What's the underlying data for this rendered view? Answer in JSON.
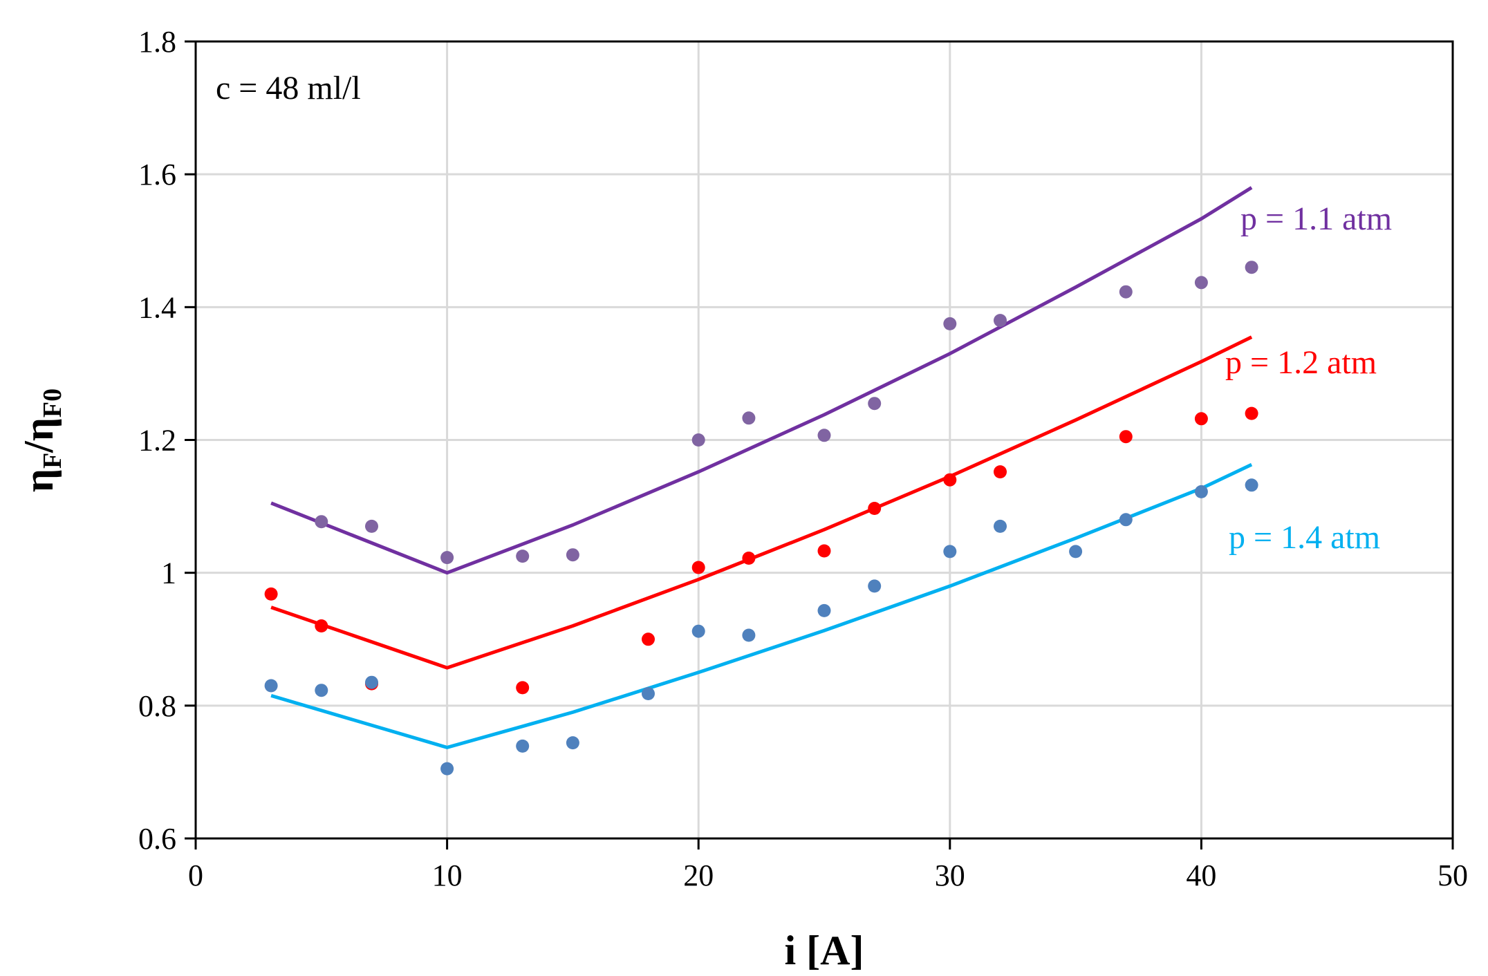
{
  "chart_data": {
    "type": "scatter",
    "title": "",
    "annotation": "c = 48 ml/l",
    "xlabel": "i [A]",
    "ylabel": {
      "base": "η",
      "sub1": "F",
      "sep": "/",
      "sub2": "F0"
    },
    "xlim": [
      0,
      50
    ],
    "ylim": [
      0.6,
      1.8
    ],
    "x_ticks": [
      "0",
      "10",
      "20",
      "30",
      "40",
      "50"
    ],
    "y_ticks": [
      "0.6",
      "0.8",
      "1",
      "1.2",
      "1.4",
      "1.6",
      "1.8"
    ],
    "grid": true,
    "series": [
      {
        "name": "p = 1.1 atm",
        "line_color": "#7030A0",
        "marker_color": "#8064A2",
        "points": [
          [
            5,
            1.077
          ],
          [
            7,
            1.07
          ],
          [
            10,
            1.023
          ],
          [
            13,
            1.025
          ],
          [
            15,
            1.027
          ],
          [
            20,
            1.2
          ],
          [
            22,
            1.233
          ],
          [
            25,
            1.207
          ],
          [
            27,
            1.255
          ],
          [
            30,
            1.375
          ],
          [
            32,
            1.38
          ],
          [
            37,
            1.423
          ],
          [
            40,
            1.437
          ],
          [
            42,
            1.46
          ]
        ],
        "fit": [
          [
            3,
            1.105
          ],
          [
            10,
            1.0
          ],
          [
            15,
            1.072
          ],
          [
            20,
            1.152
          ],
          [
            25,
            1.238
          ],
          [
            30,
            1.33
          ],
          [
            35,
            1.43
          ],
          [
            40,
            1.533
          ],
          [
            42,
            1.58
          ]
        ]
      },
      {
        "name": "p = 1.2 atm",
        "line_color": "#FF0000",
        "marker_color": "#FF0000",
        "points": [
          [
            3,
            0.968
          ],
          [
            5,
            0.92
          ],
          [
            7,
            0.833
          ],
          [
            13,
            0.827
          ],
          [
            18,
            0.9
          ],
          [
            20,
            1.008
          ],
          [
            22,
            1.022
          ],
          [
            25,
            1.033
          ],
          [
            27,
            1.097
          ],
          [
            30,
            1.14
          ],
          [
            32,
            1.152
          ],
          [
            37,
            1.205
          ],
          [
            40,
            1.232
          ],
          [
            42,
            1.24
          ]
        ],
        "fit": [
          [
            3,
            0.948
          ],
          [
            10,
            0.857
          ],
          [
            15,
            0.92
          ],
          [
            20,
            0.99
          ],
          [
            25,
            1.065
          ],
          [
            30,
            1.145
          ],
          [
            35,
            1.23
          ],
          [
            40,
            1.318
          ],
          [
            42,
            1.355
          ]
        ]
      },
      {
        "name": "p = 1.4 atm",
        "line_color": "#00B0F0",
        "marker_color": "#4F81BD",
        "points": [
          [
            3,
            0.83
          ],
          [
            5,
            0.823
          ],
          [
            7,
            0.835
          ],
          [
            10,
            0.705
          ],
          [
            13,
            0.739
          ],
          [
            15,
            0.744
          ],
          [
            18,
            0.818
          ],
          [
            20,
            0.912
          ],
          [
            22,
            0.906
          ],
          [
            25,
            0.943
          ],
          [
            27,
            0.98
          ],
          [
            30,
            1.032
          ],
          [
            32,
            1.07
          ],
          [
            35,
            1.032
          ],
          [
            37,
            1.08
          ],
          [
            40,
            1.122
          ],
          [
            42,
            1.132
          ]
        ],
        "fit": [
          [
            3,
            0.815
          ],
          [
            10,
            0.737
          ],
          [
            15,
            0.79
          ],
          [
            20,
            0.85
          ],
          [
            25,
            0.913
          ],
          [
            30,
            0.98
          ],
          [
            35,
            1.052
          ],
          [
            40,
            1.127
          ],
          [
            42,
            1.163
          ]
        ]
      }
    ]
  }
}
